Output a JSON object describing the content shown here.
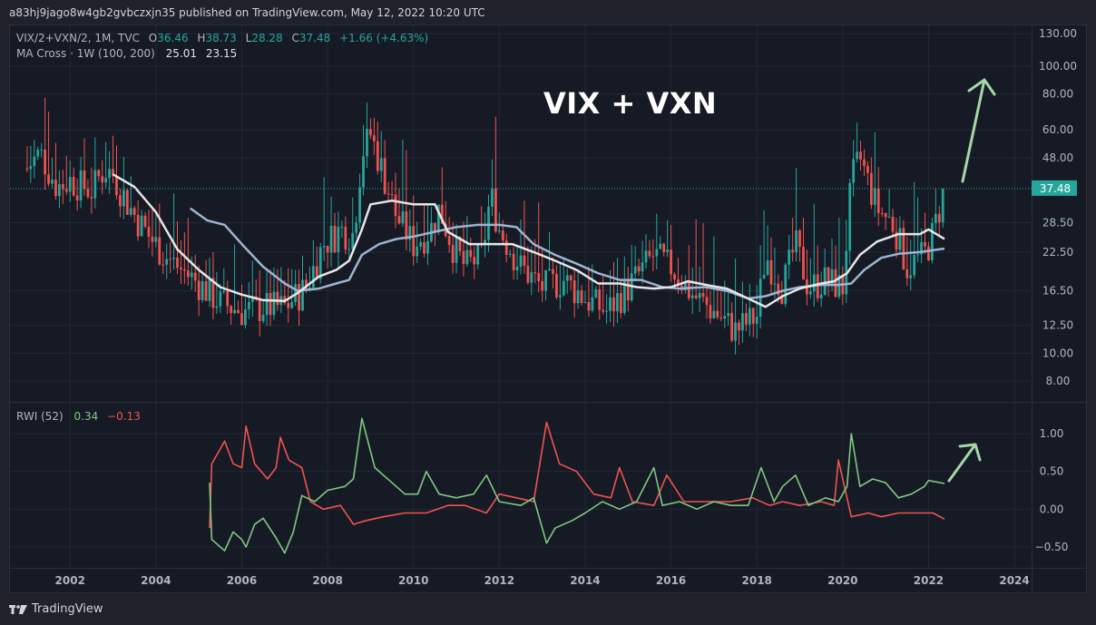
{
  "header": {
    "published_line": "a83hj9jago8w4gb2gvbczxjn35 published on TradingView.com, May 12, 2022 10:20 UTC"
  },
  "legend": {
    "symbol": "VIX/2+VXN/2, 1M, TVC",
    "o_label": "O",
    "o_value": "36.46",
    "h_label": "H",
    "h_value": "38.73",
    "l_label": "L",
    "l_value": "28.28",
    "c_label": "C",
    "c_value": "37.48",
    "change": "+1.66 (+4.63%)",
    "ma_label": "MA Cross · 1W (100, 200)",
    "ma_fast": "25.01",
    "ma_slow": "23.15",
    "rwi_label": "RWI (52)",
    "rwi_high": "0.34",
    "rwi_low": "−0.13"
  },
  "annotation": {
    "title": "VIX + VXN"
  },
  "footer": {
    "brand": "TradingView"
  },
  "colors": {
    "up": "#26a69a",
    "down": "#ef5350",
    "ma_fast": "#e6e6e6",
    "ma_slow": "#9fb3d0",
    "rwi_high": "#81c784",
    "rwi_low": "#ef5350",
    "price_badge": "#26a69a",
    "arrow": "#a5d6a7"
  },
  "chart_data": [
    {
      "type": "candlestick",
      "title": "VIX/2+VXN/2, 1M, TVC",
      "y_scale": "log",
      "ylim": [
        7,
        135
      ],
      "xlim": [
        2000.6,
        2024.4
      ],
      "grid": true,
      "yticks": [
        "130.00",
        "100.00",
        "80.00",
        "60.00",
        "48.00",
        "37.48",
        "28.50",
        "22.50",
        "16.50",
        "12.50",
        "10.00",
        "8.00"
      ],
      "xticks": [
        "2002",
        "2004",
        "2006",
        "2008",
        "2010",
        "2012",
        "2014",
        "2016",
        "2018",
        "2020",
        "2022",
        "2024"
      ],
      "last_price_label": "37.48",
      "anchors": [
        [
          2001.0,
          44
        ],
        [
          2001.3,
          50
        ],
        [
          2001.7,
          38
        ],
        [
          2002.0,
          40
        ],
        [
          2002.5,
          37
        ],
        [
          2002.8,
          44
        ],
        [
          2003.0,
          42
        ],
        [
          2003.4,
          32
        ],
        [
          2003.8,
          26
        ],
        [
          2004.2,
          22
        ],
        [
          2004.6,
          19.5
        ],
        [
          2005.0,
          17.5
        ],
        [
          2005.5,
          15
        ],
        [
          2006.0,
          14
        ],
        [
          2006.5,
          14.5
        ],
        [
          2007.0,
          14.5
        ],
        [
          2007.5,
          17
        ],
        [
          2007.9,
          24
        ],
        [
          2008.3,
          27
        ],
        [
          2008.6,
          26
        ],
        [
          2008.8,
          50
        ],
        [
          2009.0,
          58
        ],
        [
          2009.3,
          42
        ],
        [
          2009.6,
          30
        ],
        [
          2010.0,
          24
        ],
        [
          2010.4,
          27
        ],
        [
          2010.6,
          32
        ],
        [
          2010.9,
          24
        ],
        [
          2011.2,
          20
        ],
        [
          2011.6,
          22
        ],
        [
          2011.8,
          36
        ],
        [
          2012.0,
          27
        ],
        [
          2012.5,
          20
        ],
        [
          2013.0,
          17
        ],
        [
          2013.5,
          18
        ],
        [
          2014.0,
          15.5
        ],
        [
          2014.5,
          14
        ],
        [
          2015.0,
          17
        ],
        [
          2015.6,
          22
        ],
        [
          2016.0,
          20
        ],
        [
          2016.5,
          16
        ],
        [
          2017.0,
          14
        ],
        [
          2017.5,
          12
        ],
        [
          2018.0,
          13.5
        ],
        [
          2018.2,
          22
        ],
        [
          2018.6,
          17
        ],
        [
          2018.9,
          24
        ],
        [
          2019.2,
          17
        ],
        [
          2019.6,
          18
        ],
        [
          2020.0,
          17
        ],
        [
          2020.2,
          40
        ],
        [
          2020.4,
          48
        ],
        [
          2020.8,
          32
        ],
        [
          2021.2,
          28
        ],
        [
          2021.5,
          20
        ],
        [
          2021.9,
          22
        ],
        [
          2022.1,
          26
        ],
        [
          2022.37,
          37.48
        ]
      ],
      "series": [
        {
          "name": "MA 100",
          "points": [
            [
              2003.0,
              42
            ],
            [
              2003.5,
              38
            ],
            [
              2004.0,
              31
            ],
            [
              2004.5,
              23
            ],
            [
              2005.0,
              19.5
            ],
            [
              2005.5,
              17
            ],
            [
              2006.0,
              16
            ],
            [
              2006.5,
              15.3
            ],
            [
              2007.0,
              15.2
            ],
            [
              2007.3,
              16.2
            ],
            [
              2007.8,
              18.5
            ],
            [
              2008.2,
              19.5
            ],
            [
              2008.5,
              21
            ],
            [
              2008.8,
              27
            ],
            [
              2009.0,
              33
            ],
            [
              2009.5,
              34
            ],
            [
              2010.0,
              33
            ],
            [
              2010.5,
              33
            ],
            [
              2010.8,
              26.5
            ],
            [
              2011.3,
              24
            ],
            [
              2011.8,
              24
            ],
            [
              2012.3,
              24
            ],
            [
              2012.8,
              22.5
            ],
            [
              2013.3,
              21
            ],
            [
              2013.8,
              19.5
            ],
            [
              2014.3,
              17.5
            ],
            [
              2014.8,
              17.5
            ],
            [
              2015.2,
              17
            ],
            [
              2015.6,
              16.8
            ],
            [
              2016.0,
              17
            ],
            [
              2016.4,
              17.8
            ],
            [
              2016.9,
              17.2
            ],
            [
              2017.3,
              16.8
            ],
            [
              2017.8,
              15.5
            ],
            [
              2018.2,
              14.5
            ],
            [
              2018.6,
              15.8
            ],
            [
              2019.0,
              16.8
            ],
            [
              2019.5,
              17.5
            ],
            [
              2019.8,
              17.8
            ],
            [
              2020.1,
              19
            ],
            [
              2020.4,
              22
            ],
            [
              2020.8,
              24.5
            ],
            [
              2021.3,
              26
            ],
            [
              2021.8,
              26
            ],
            [
              2022.0,
              27
            ],
            [
              2022.37,
              25.01
            ]
          ]
        },
        {
          "name": "MA 200",
          "points": [
            [
              2004.8,
              32
            ],
            [
              2005.2,
              29
            ],
            [
              2005.6,
              28
            ],
            [
              2006.0,
              24
            ],
            [
              2006.5,
              20
            ],
            [
              2007.0,
              17.5
            ],
            [
              2007.3,
              16.5
            ],
            [
              2007.8,
              16.8
            ],
            [
              2008.2,
              17.5
            ],
            [
              2008.5,
              18
            ],
            [
              2008.8,
              22
            ],
            [
              2009.2,
              24
            ],
            [
              2009.6,
              25
            ],
            [
              2010.0,
              25.5
            ],
            [
              2010.5,
              26.5
            ],
            [
              2011.0,
              27.5
            ],
            [
              2011.5,
              28
            ],
            [
              2012.0,
              28
            ],
            [
              2012.4,
              27.5
            ],
            [
              2012.8,
              24
            ],
            [
              2013.3,
              22
            ],
            [
              2013.8,
              20.5
            ],
            [
              2014.3,
              19
            ],
            [
              2014.8,
              18
            ],
            [
              2015.3,
              18
            ],
            [
              2015.8,
              17
            ],
            [
              2016.2,
              16.8
            ],
            [
              2016.8,
              17
            ],
            [
              2017.3,
              16.5
            ],
            [
              2017.8,
              15.5
            ],
            [
              2018.2,
              15.8
            ],
            [
              2018.6,
              16.5
            ],
            [
              2019.0,
              17
            ],
            [
              2019.5,
              17.3
            ],
            [
              2019.9,
              17.3
            ],
            [
              2020.2,
              17.5
            ],
            [
              2020.5,
              19.5
            ],
            [
              2020.9,
              21.5
            ],
            [
              2021.3,
              22.2
            ],
            [
              2021.8,
              22.5
            ],
            [
              2022.37,
              23.15
            ]
          ]
        }
      ]
    },
    {
      "type": "line",
      "title": "RWI (52)",
      "ylim": [
        -0.75,
        1.3
      ],
      "yticks": [
        "1.00",
        "0.50",
        "0.00",
        "−0.50"
      ],
      "series": [
        {
          "name": "RWI High",
          "points": [
            [
              2005.25,
              0.35
            ],
            [
              2005.3,
              -0.4
            ],
            [
              2005.6,
              -0.55
            ],
            [
              2005.8,
              -0.3
            ],
            [
              2006.0,
              -0.4
            ],
            [
              2006.1,
              -0.5
            ],
            [
              2006.3,
              -0.2
            ],
            [
              2006.5,
              -0.12
            ],
            [
              2006.8,
              -0.38
            ],
            [
              2007.0,
              -0.58
            ],
            [
              2007.2,
              -0.3
            ],
            [
              2007.4,
              0.18
            ],
            [
              2007.7,
              0.1
            ],
            [
              2008.0,
              0.25
            ],
            [
              2008.4,
              0.3
            ],
            [
              2008.6,
              0.4
            ],
            [
              2008.8,
              1.2
            ],
            [
              2009.1,
              0.55
            ],
            [
              2009.5,
              0.35
            ],
            [
              2009.8,
              0.2
            ],
            [
              2010.1,
              0.2
            ],
            [
              2010.3,
              0.5
            ],
            [
              2010.6,
              0.2
            ],
            [
              2011.0,
              0.15
            ],
            [
              2011.4,
              0.2
            ],
            [
              2011.7,
              0.45
            ],
            [
              2012.0,
              0.1
            ],
            [
              2012.5,
              0.05
            ],
            [
              2012.8,
              0.15
            ],
            [
              2013.1,
              -0.45
            ],
            [
              2013.3,
              -0.25
            ],
            [
              2013.7,
              -0.15
            ],
            [
              2014.0,
              -0.05
            ],
            [
              2014.4,
              0.1
            ],
            [
              2014.8,
              0.0
            ],
            [
              2015.2,
              0.1
            ],
            [
              2015.6,
              0.55
            ],
            [
              2015.8,
              0.05
            ],
            [
              2016.2,
              0.1
            ],
            [
              2016.6,
              0.0
            ],
            [
              2017.0,
              0.1
            ],
            [
              2017.4,
              0.05
            ],
            [
              2017.8,
              0.05
            ],
            [
              2018.1,
              0.55
            ],
            [
              2018.4,
              0.1
            ],
            [
              2018.6,
              0.3
            ],
            [
              2018.9,
              0.45
            ],
            [
              2019.2,
              0.05
            ],
            [
              2019.6,
              0.15
            ],
            [
              2019.9,
              0.1
            ],
            [
              2020.1,
              0.3
            ],
            [
              2020.2,
              1.0
            ],
            [
              2020.4,
              0.3
            ],
            [
              2020.7,
              0.4
            ],
            [
              2021.0,
              0.35
            ],
            [
              2021.3,
              0.15
            ],
            [
              2021.6,
              0.2
            ],
            [
              2021.9,
              0.3
            ],
            [
              2022.0,
              0.38
            ],
            [
              2022.37,
              0.34
            ]
          ]
        },
        {
          "name": "RWI Low",
          "points": [
            [
              2005.25,
              -0.25
            ],
            [
              2005.3,
              0.6
            ],
            [
              2005.6,
              0.9
            ],
            [
              2005.8,
              0.6
            ],
            [
              2006.0,
              0.55
            ],
            [
              2006.1,
              1.1
            ],
            [
              2006.3,
              0.6
            ],
            [
              2006.6,
              0.4
            ],
            [
              2006.8,
              0.55
            ],
            [
              2006.9,
              0.95
            ],
            [
              2007.1,
              0.65
            ],
            [
              2007.4,
              0.55
            ],
            [
              2007.6,
              0.1
            ],
            [
              2007.9,
              0.0
            ],
            [
              2008.3,
              0.05
            ],
            [
              2008.6,
              -0.2
            ],
            [
              2008.9,
              -0.15
            ],
            [
              2009.3,
              -0.1
            ],
            [
              2009.8,
              -0.05
            ],
            [
              2010.3,
              -0.05
            ],
            [
              2010.8,
              0.05
            ],
            [
              2011.2,
              0.05
            ],
            [
              2011.7,
              -0.05
            ],
            [
              2012.0,
              0.2
            ],
            [
              2012.4,
              0.15
            ],
            [
              2012.8,
              0.1
            ],
            [
              2013.1,
              1.15
            ],
            [
              2013.4,
              0.6
            ],
            [
              2013.8,
              0.5
            ],
            [
              2014.2,
              0.2
            ],
            [
              2014.6,
              0.15
            ],
            [
              2014.8,
              0.55
            ],
            [
              2015.1,
              0.1
            ],
            [
              2015.6,
              0.05
            ],
            [
              2015.9,
              0.45
            ],
            [
              2016.3,
              0.1
            ],
            [
              2016.8,
              0.1
            ],
            [
              2017.4,
              0.1
            ],
            [
              2017.9,
              0.15
            ],
            [
              2018.3,
              0.05
            ],
            [
              2018.6,
              0.1
            ],
            [
              2019.0,
              0.05
            ],
            [
              2019.5,
              0.1
            ],
            [
              2019.8,
              0.05
            ],
            [
              2019.9,
              0.65
            ],
            [
              2020.2,
              -0.1
            ],
            [
              2020.6,
              -0.05
            ],
            [
              2020.9,
              -0.1
            ],
            [
              2021.3,
              -0.05
            ],
            [
              2021.8,
              -0.05
            ],
            [
              2022.1,
              -0.05
            ],
            [
              2022.37,
              -0.13
            ]
          ]
        }
      ]
    }
  ]
}
